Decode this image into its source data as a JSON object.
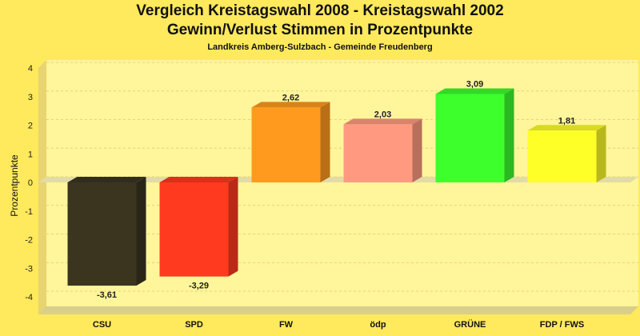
{
  "chart_data": {
    "type": "bar",
    "title": "Vergleich Kreistagswahl 2008 - Kreistagswahl 2002",
    "subtitle_line2": "Gewinn/Verlust Stimmen in Prozentpunkte",
    "subtitle": "Landkreis Amberg-Sulzbach - Gemeinde Freudenberg",
    "ylabel": "Prozentpunkte",
    "xlabel": "",
    "ylim": [
      -4,
      4
    ],
    "yticks": [
      "-4",
      "-3",
      "-2",
      "-1",
      "0",
      "1",
      "2",
      "3",
      "4"
    ],
    "categories": [
      "CSU",
      "SPD",
      "FW",
      "ödp",
      "GRÜNE",
      "FDP / FWS"
    ],
    "values": [
      -3.61,
      -3.29,
      2.62,
      2.03,
      3.09,
      1.81
    ],
    "value_labels": [
      "-3,61",
      "-3,29",
      "2,62",
      "2,03",
      "3,09",
      "1,81"
    ],
    "colors": [
      "#3b3520",
      "#ff3a1e",
      "#ff9a1e",
      "#ff9a80",
      "#3cff2c",
      "#ffff28"
    ],
    "background_color": "#ffe95c",
    "plot_color": "#fff59a",
    "grid": true,
    "legend": "none"
  }
}
